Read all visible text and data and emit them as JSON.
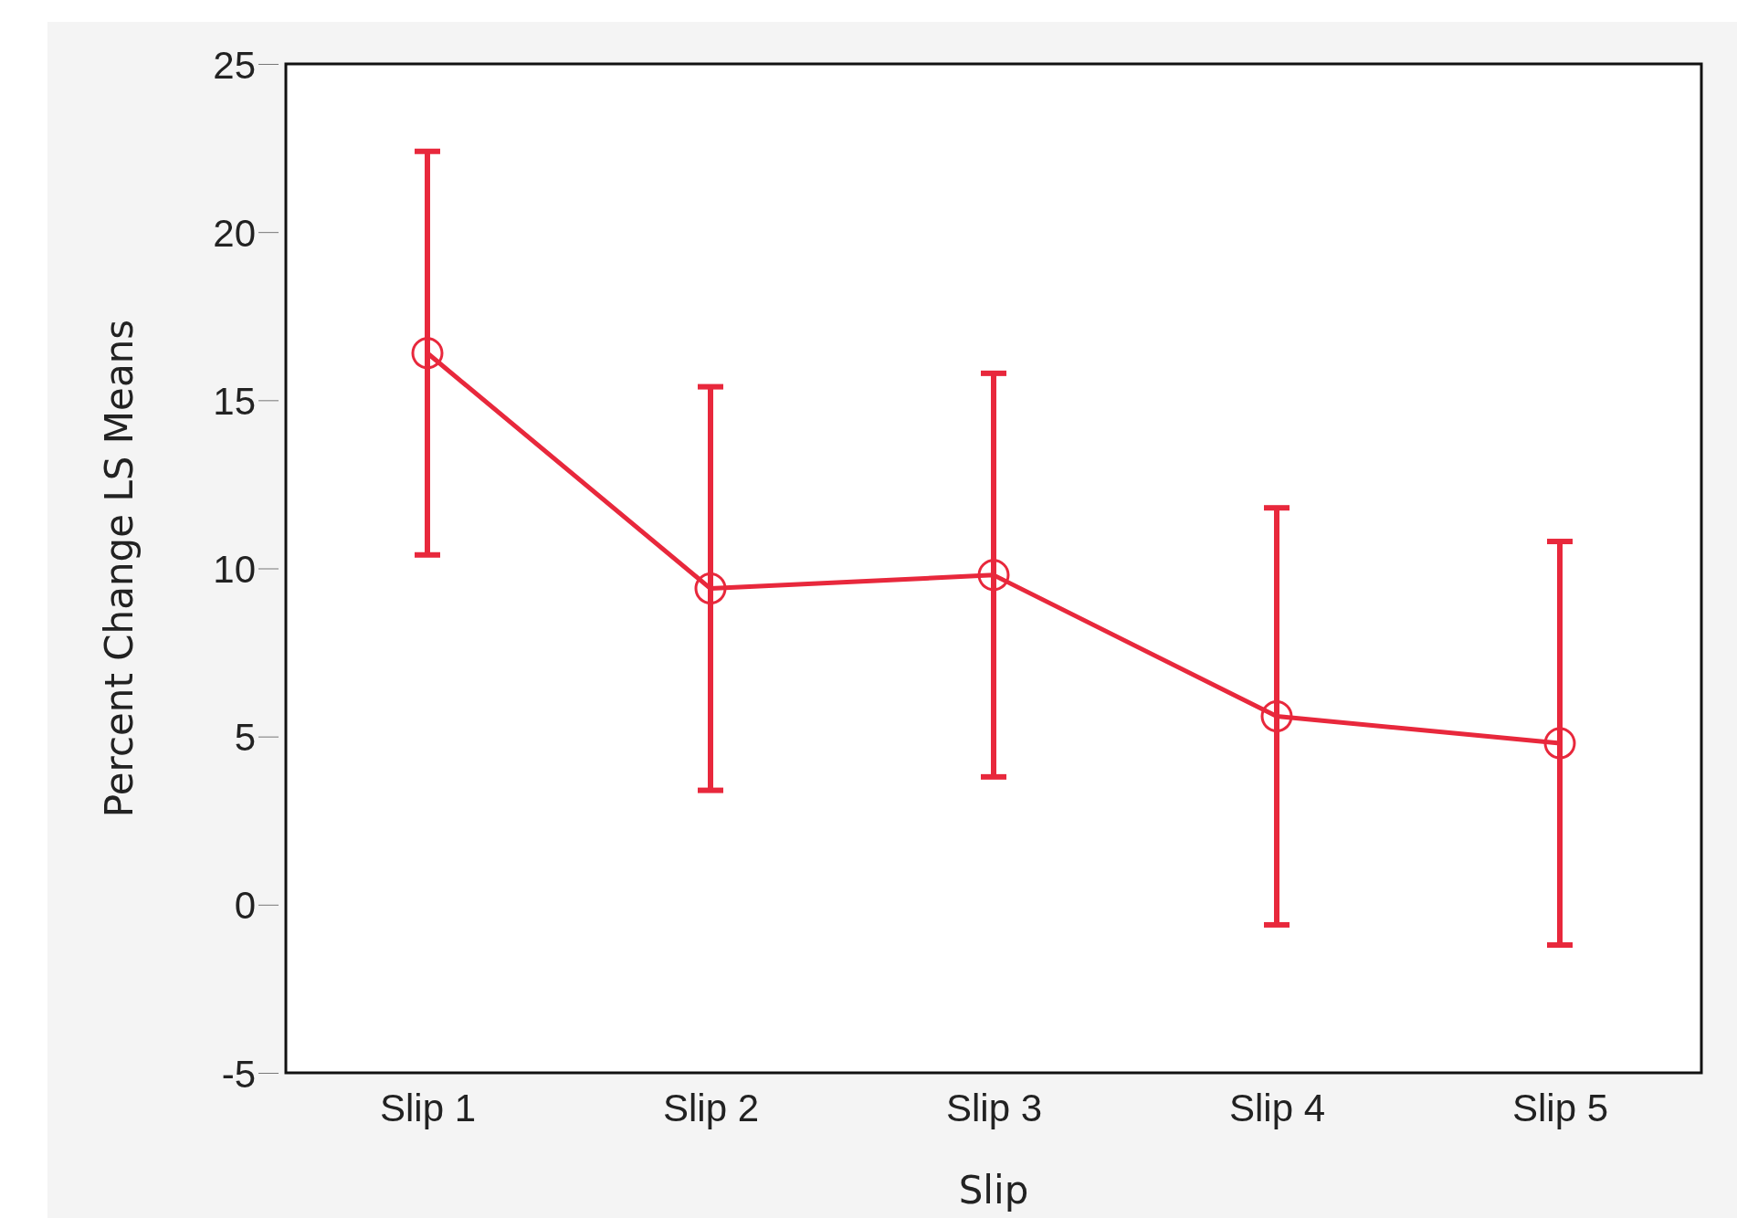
{
  "chart_data": {
    "type": "line",
    "xlabel": "Slip",
    "ylabel": "Percent Change LS Means",
    "categories": [
      "Slip 1",
      "Slip 2",
      "Slip 3",
      "Slip 4",
      "Slip 5"
    ],
    "series": [
      {
        "color": "#e8283c",
        "values": [
          16.4,
          9.4,
          9.8,
          5.6,
          4.8
        ],
        "errors": [
          6.0,
          6.0,
          6.0,
          6.2,
          6.0
        ]
      }
    ],
    "ylim": [
      -5,
      25
    ],
    "yticks": [
      -5,
      0,
      5,
      10,
      15,
      20,
      25
    ],
    "marker": "circle",
    "line_style": "solid",
    "grid": false
  }
}
